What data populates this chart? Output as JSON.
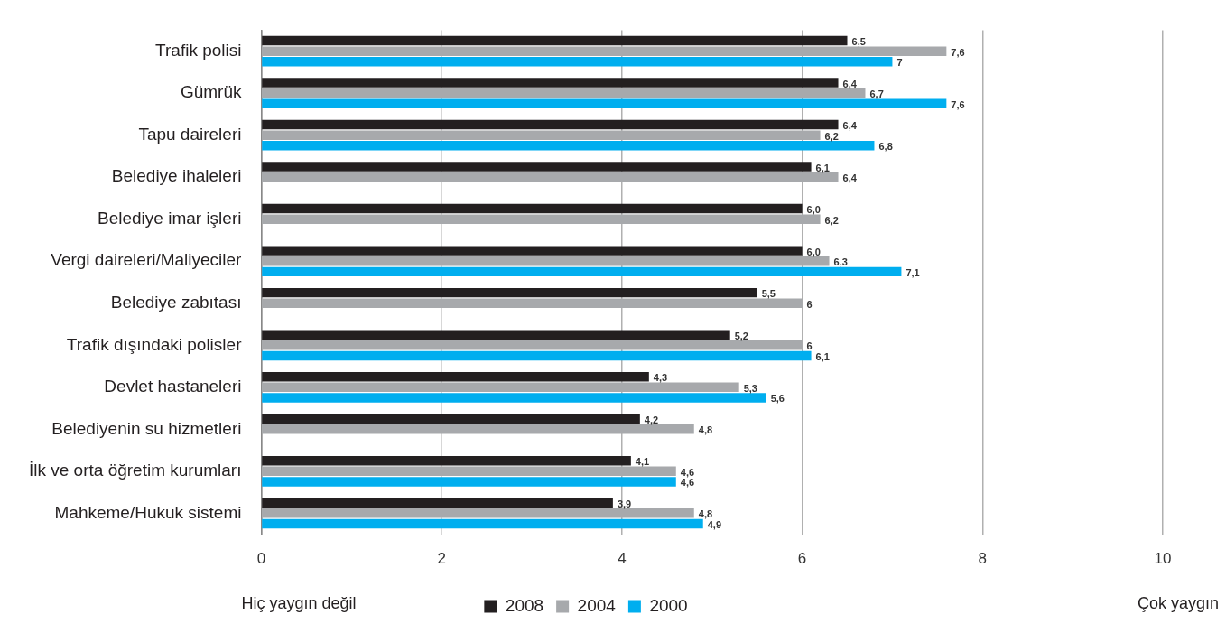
{
  "chart_data": {
    "type": "bar",
    "orientation": "horizontal",
    "categories": [
      "Trafik polisi",
      "Gümrük",
      "Tapu daireleri",
      "Belediye ihaleleri",
      "Belediye imar işleri",
      "Vergi daireleri/Maliyeciler",
      "Belediye zabıtası",
      "Trafik dışındaki polisler",
      "Devlet hastaneleri",
      "Belediyenin su hizmetleri",
      "İlk ve orta öğretim kurumları",
      "Mahkeme/Hukuk sistemi"
    ],
    "series": [
      {
        "name": "2008",
        "color": "#231f20",
        "values": [
          6.5,
          6.4,
          6.4,
          6.1,
          6.0,
          6.0,
          5.5,
          5.2,
          4.3,
          4.2,
          4.1,
          3.9
        ],
        "value_labels": [
          "6,5",
          "6,4",
          "6,4",
          "6,1",
          "6,0",
          "6,0",
          "5,5",
          "5,2",
          "4,3",
          "4,2",
          "4,1",
          "3,9"
        ]
      },
      {
        "name": "2004",
        "color": "#a7a9ac",
        "values": [
          7.6,
          6.7,
          6.2,
          6.4,
          6.2,
          6.3,
          6,
          6,
          5.3,
          4.8,
          4.6,
          4.8
        ],
        "value_labels": [
          "7,6",
          "6,7",
          "6,2",
          "6,4",
          "6,2",
          "6,3",
          "6",
          "6",
          "5,3",
          "4,8",
          "4,6",
          "4,8"
        ]
      },
      {
        "name": "2000",
        "color": "#00aeef",
        "values": [
          7,
          7.6,
          6.8,
          null,
          null,
          7.1,
          null,
          6.1,
          5.6,
          null,
          4.6,
          4.9
        ],
        "value_labels": [
          "7",
          "7,6",
          "6,8",
          null,
          null,
          "7,1",
          null,
          "6,1",
          "5,6",
          null,
          "4,6",
          "4,9"
        ]
      }
    ],
    "xlim": [
      0,
      10
    ],
    "xticks": [
      0,
      2,
      4,
      6,
      8,
      10
    ],
    "grid": "x",
    "legend": "bottom",
    "annotations": [
      "Hiç yaygın değil",
      "Çok yaygın"
    ]
  }
}
